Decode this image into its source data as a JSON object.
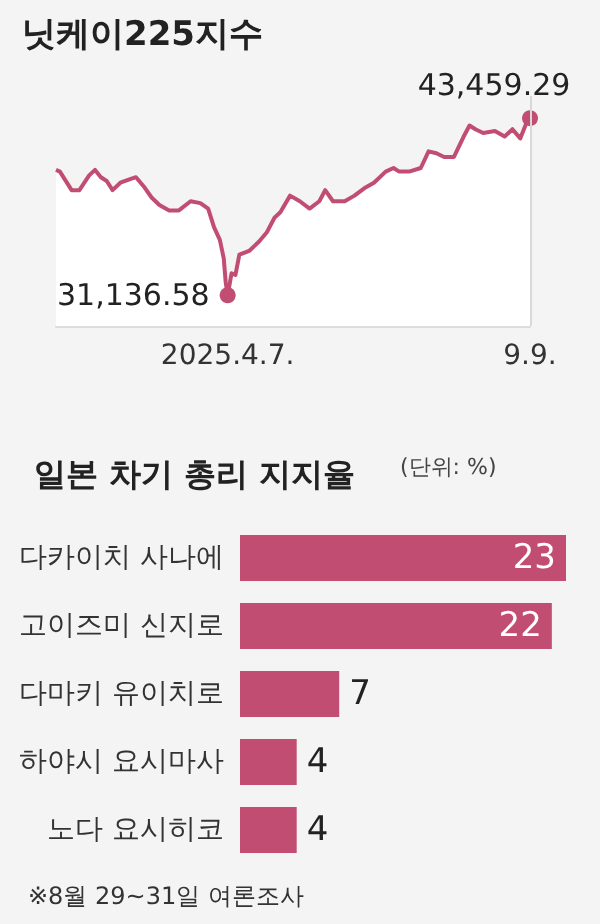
{
  "chart_data": [
    {
      "type": "area",
      "title": "닛케이225지수",
      "color": "#c24d72",
      "marker": "none",
      "tick_labels": "x",
      "grid": false,
      "x": [
        "2025-01-09",
        "2025-01-11",
        "2025-01-17",
        "2025-01-21",
        "2025-01-26",
        "2025-01-29",
        "2025-02-01",
        "2025-02-04",
        "2025-02-07",
        "2025-02-11",
        "2025-02-16",
        "2025-02-19",
        "2025-02-23",
        "2025-02-27",
        "2025-03-03",
        "2025-03-08",
        "2025-03-13",
        "2025-03-19",
        "2025-03-24",
        "2025-03-28",
        "2025-03-31",
        "2025-04-03",
        "2025-04-05",
        "2025-04-06",
        "2025-04-07",
        "2025-04-09",
        "2025-04-11",
        "2025-04-13",
        "2025-04-18",
        "2025-04-23",
        "2025-04-27",
        "2025-05-01",
        "2025-05-04",
        "2025-05-09",
        "2025-05-14",
        "2025-05-19",
        "2025-05-24",
        "2025-05-27",
        "2025-05-31",
        "2025-06-06",
        "2025-06-11",
        "2025-06-16",
        "2025-06-21",
        "2025-06-27",
        "2025-07-01",
        "2025-07-04",
        "2025-07-09",
        "2025-07-15",
        "2025-07-19",
        "2025-07-23",
        "2025-07-27",
        "2025-08-01",
        "2025-08-06",
        "2025-08-09",
        "2025-08-12",
        "2025-08-16",
        "2025-08-22",
        "2025-08-27",
        "2025-08-31",
        "2025-09-04",
        "2025-09-07",
        "2025-09-09"
      ],
      "values": [
        39860,
        39740,
        38450,
        38450,
        39480,
        39860,
        39350,
        39090,
        38450,
        38970,
        39220,
        39350,
        38710,
        37940,
        37420,
        37040,
        37040,
        37680,
        37550,
        37170,
        35880,
        34990,
        33700,
        32030,
        31136.58,
        32670,
        32550,
        33960,
        34220,
        34860,
        35500,
        36530,
        36910,
        38070,
        37680,
        37170,
        37680,
        38450,
        37680,
        37680,
        38070,
        38580,
        38970,
        39740,
        39990,
        39740,
        39740,
        39990,
        41150,
        41020,
        40760,
        40760,
        42180,
        42950,
        42690,
        42430,
        42560,
        42180,
        42690,
        42050,
        43070,
        43459.29
      ],
      "value_labels": [
        null,
        null,
        null,
        null,
        null,
        null,
        null,
        null,
        null,
        null,
        null,
        null,
        null,
        null,
        null,
        null,
        null,
        null,
        null,
        null,
        null,
        null,
        null,
        null,
        "31,136.58",
        null,
        null,
        null,
        null,
        null,
        null,
        null,
        null,
        null,
        null,
        null,
        null,
        null,
        null,
        null,
        null,
        null,
        null,
        null,
        null,
        null,
        null,
        null,
        null,
        null,
        null,
        null,
        null,
        null,
        null,
        null,
        null,
        null,
        null,
        null,
        null,
        "43,459.29"
      ],
      "xlim": [
        "2025-01-09",
        "2025-09-09"
      ],
      "ylim": [
        29000,
        45000
      ],
      "xticks": [
        {
          "value": "2025-04-07",
          "label": "2025.4.7."
        },
        {
          "value": "2025-09-09",
          "label": "9.9."
        }
      ],
      "ref_lines": [
        {
          "axis": "x",
          "value": "2025-09-09",
          "color": "#d9d9d9"
        }
      ]
    },
    {
      "type": "bar",
      "orientation": "horizontal",
      "title": "일본 차기 총리 지지율",
      "subtitle": "(단위: %)",
      "color": "#c24d72",
      "data_labels": true,
      "grid": false,
      "categories": [
        "다카이치 사나에",
        "고이즈미 신지로",
        "다마키 유이치로",
        "하야시 요시마사",
        "노다 요시히코"
      ],
      "values": [
        23,
        22,
        7,
        4,
        4
      ],
      "annotations": [
        "※8월 29~31일 여론조사"
      ]
    }
  ]
}
